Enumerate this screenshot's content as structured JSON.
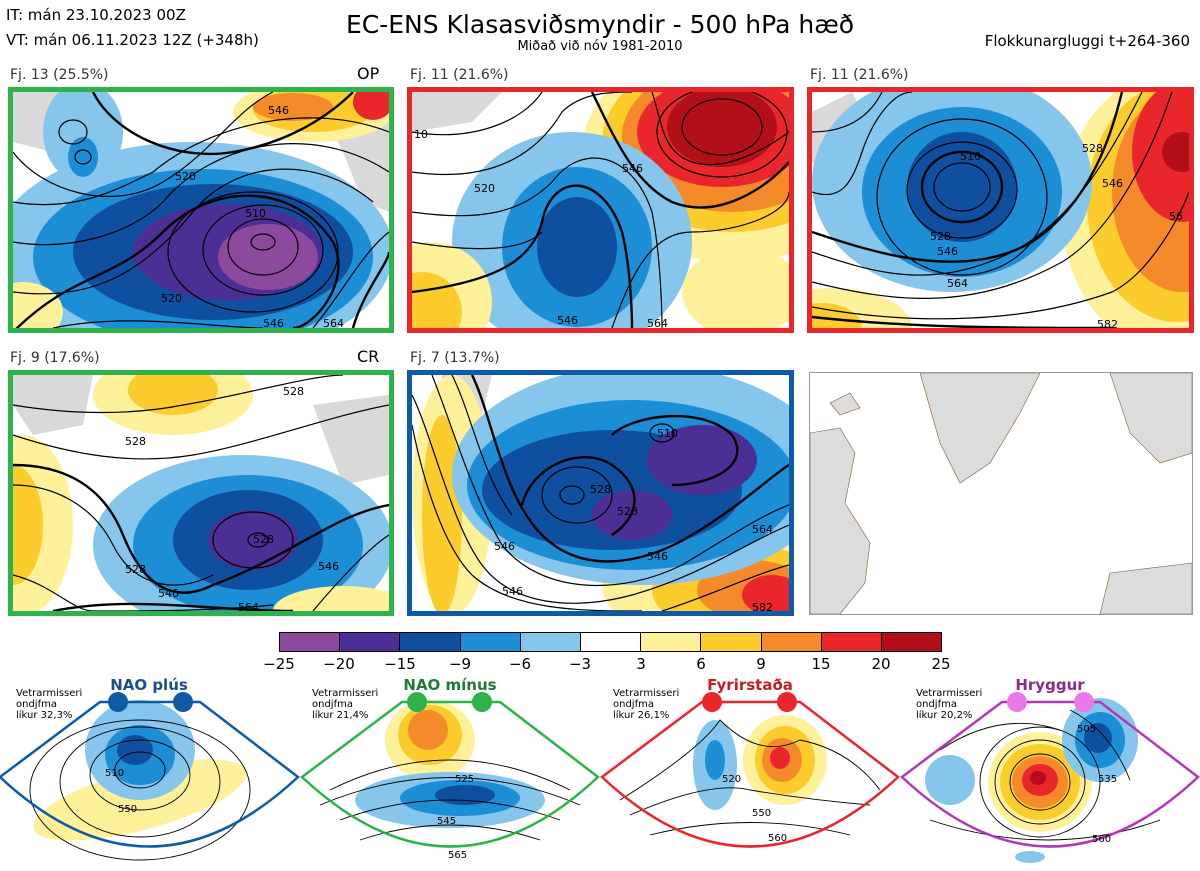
{
  "header": {
    "it": "IT: mán 23.10.2023 00Z",
    "vt": "VT: mán 06.11.2023 12Z  (+348h)",
    "title": "EC-ENS Klasasviðsmyndir - 500 hPa hæð",
    "subtitle": "Miðað við nóv 1981-2010",
    "window": "Flokkunargluggi t+264-360"
  },
  "panels": [
    {
      "label": "Fj. 13 (25.5%)",
      "tag": "OP",
      "border": "#2db34a",
      "contours": [
        "520",
        "510",
        "546",
        "520",
        "546",
        "564"
      ]
    },
    {
      "label": "Fj. 11 (21.6%)",
      "tag": "",
      "border": "#e8262b",
      "contours": [
        "520",
        "546",
        "546",
        "564",
        "10"
      ]
    },
    {
      "label": "Fj. 11 (21.6%)",
      "tag": "",
      "border": "#e8262b",
      "contours": [
        "510",
        "528",
        "546",
        "564",
        "528",
        "546",
        "582",
        "56"
      ]
    },
    {
      "label": "Fj. 9 (17.6%)",
      "tag": "CR",
      "border": "#2db34a",
      "contours": [
        "528",
        "528",
        "546",
        "546",
        "528",
        "564",
        "528"
      ]
    },
    {
      "label": "Fj. 7 (13.7%)",
      "tag": "",
      "border": "#0d5aa7",
      "contours": [
        "510",
        "528",
        "528",
        "546",
        "564",
        "546",
        "582",
        "546"
      ]
    }
  ],
  "colorbar": {
    "colors": [
      "#8c4a9e",
      "#4c2f95",
      "#0f4fa0",
      "#1b8ed6",
      "#86c6ec",
      "#ffffff",
      "#fff19a",
      "#fbcc2c",
      "#f48a2a",
      "#e8262b",
      "#b30f18"
    ],
    "labels": [
      "−25",
      "−20",
      "−15",
      "−9",
      "−6",
      "−3",
      "3",
      "6",
      "9",
      "15",
      "20",
      "25"
    ]
  },
  "regimes": [
    {
      "name": "NAO plús",
      "note1": "Vetrarmisseri",
      "note2": "ondjfma",
      "note3": "líkur 32,3%",
      "color": "#0d5aa7",
      "contours": [
        "510",
        "550"
      ]
    },
    {
      "name": "NAO mínus",
      "note1": "Vetrarmisseri",
      "note2": "ondjfma",
      "note3": "líkur 21,4%",
      "color": "#2db34a",
      "contours": [
        "525",
        "545",
        "565"
      ]
    },
    {
      "name": "Fyrirstaða",
      "note1": "Vetrarmisseri",
      "note2": "ondjfma",
      "note3": "líkur 26,1%",
      "color": "#e8262b",
      "contours": [
        "520",
        "550",
        "560"
      ]
    },
    {
      "name": "Hryggur",
      "note1": "Vetrarmisseri",
      "note2": "ondjfma",
      "note3": "líkur 20,2%",
      "color": "#b038b4",
      "contours": [
        "505",
        "535",
        "560"
      ]
    }
  ]
}
